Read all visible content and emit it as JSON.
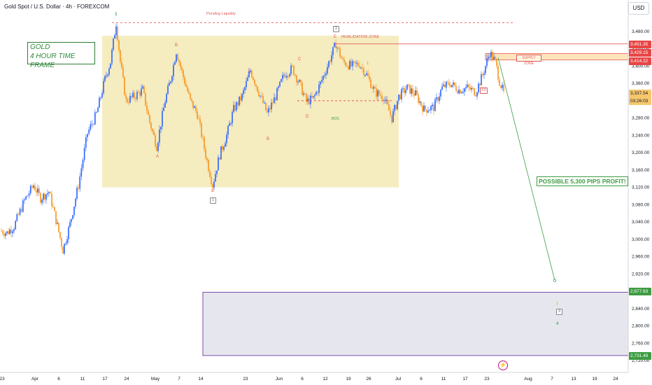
{
  "chart_data": {
    "type": "candlestick",
    "title": "Gold Spot / U.S. Dollar · 4h · FOREXCOM",
    "currency": "USD",
    "y_ticks": [
      3480,
      3440,
      3400,
      3360,
      3320,
      3280,
      3240,
      3200,
      3160,
      3120,
      3080,
      3040,
      3000,
      2960,
      2920,
      2880,
      2840,
      2800,
      2760,
      2720
    ],
    "x_ticks": [
      "23",
      "Apr",
      "6",
      "11",
      "17",
      "24",
      "May",
      "7",
      "14",
      "23",
      "Jun",
      "6",
      "12",
      "19",
      "26",
      "Jul",
      "6",
      "11",
      "17",
      "23",
      "Aug",
      "7",
      "13",
      "19",
      "24"
    ],
    "price_labels": [
      "3,451.35",
      "3,429.15",
      "3,414.22",
      "3,337.54",
      "03:26:03",
      "2,877.63",
      "2,731.49"
    ],
    "price_path": [
      [
        0,
        3020
      ],
      [
        10,
        3015
      ],
      [
        20,
        3030
      ],
      [
        35,
        3090
      ],
      [
        48,
        3125
      ],
      [
        58,
        3095
      ],
      [
        70,
        3110
      ],
      [
        80,
        3045
      ],
      [
        90,
        2975
      ],
      [
        100,
        3035
      ],
      [
        112,
        3125
      ],
      [
        125,
        3245
      ],
      [
        138,
        3290
      ],
      [
        150,
        3370
      ],
      [
        158,
        3410
      ],
      [
        166,
        3500
      ],
      [
        172,
        3410
      ],
      [
        180,
        3320
      ],
      [
        192,
        3330
      ],
      [
        204,
        3345
      ],
      [
        214,
        3270
      ],
      [
        224,
        3215
      ],
      [
        236,
        3320
      ],
      [
        244,
        3370
      ],
      [
        252,
        3435
      ],
      [
        262,
        3375
      ],
      [
        272,
        3320
      ],
      [
        282,
        3290
      ],
      [
        294,
        3195
      ],
      [
        304,
        3125
      ],
      [
        314,
        3195
      ],
      [
        324,
        3240
      ],
      [
        334,
        3300
      ],
      [
        346,
        3330
      ],
      [
        358,
        3390
      ],
      [
        370,
        3340
      ],
      [
        382,
        3290
      ],
      [
        394,
        3330
      ],
      [
        406,
        3380
      ],
      [
        418,
        3395
      ],
      [
        428,
        3360
      ],
      [
        438,
        3318
      ],
      [
        448,
        3325
      ],
      [
        458,
        3360
      ],
      [
        468,
        3400
      ],
      [
        480,
        3452
      ],
      [
        490,
        3410
      ],
      [
        502,
        3400
      ],
      [
        514,
        3405
      ],
      [
        524,
        3380
      ],
      [
        536,
        3340
      ],
      [
        548,
        3330
      ],
      [
        560,
        3280
      ],
      [
        570,
        3330
      ],
      [
        582,
        3350
      ],
      [
        594,
        3335
      ],
      [
        606,
        3300
      ],
      [
        620,
        3305
      ],
      [
        632,
        3350
      ],
      [
        644,
        3360
      ],
      [
        656,
        3345
      ],
      [
        668,
        3350
      ],
      [
        680,
        3340
      ],
      [
        690,
        3380
      ],
      [
        700,
        3432
      ],
      [
        708,
        3410
      ],
      [
        714,
        3365
      ],
      [
        720,
        3337
      ]
    ],
    "annotations": {
      "gold_box": [
        "GOLD",
        "4 HOUR TIME FRAME"
      ],
      "pending_liquidity": "Pending Liquidity",
      "invalidation_zone": "INVALIDATION ZONE",
      "bos": "BOS",
      "supply_zone": "SUPPLY ZONE",
      "profit": "POSSIBLE 5,300 PIPS PROFIT!"
    },
    "wave_labels": [
      "3",
      "B",
      "A",
      "C",
      "A",
      "B",
      "C",
      "D",
      "E",
      "1",
      "1",
      "4"
    ],
    "badges": [
      "2",
      "1",
      "3",
      "XX"
    ],
    "levels": {
      "pending_liquidity": 3500,
      "invalidation": 3451.35,
      "supply_top": 3429.15,
      "supply_bottom": 3414.22,
      "bos": 3320,
      "target_top": 2877.63,
      "target_bottom": 2731.49
    },
    "projection": {
      "from": 3420,
      "to": 2905
    },
    "colors": {
      "up": "#2962ff",
      "down": "#f7931a",
      "zone": "#f3e7b0",
      "supply": "#f9c36b",
      "red": "#e84545",
      "green": "#3d9c42"
    }
  }
}
